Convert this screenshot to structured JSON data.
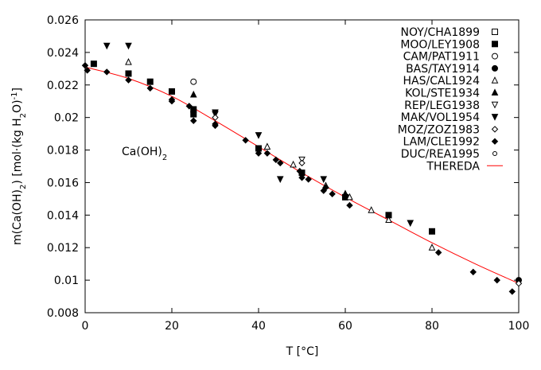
{
  "chart_data": {
    "type": "scatter",
    "xlabel": "T [°C]",
    "ylabel_parts": [
      "m(Ca(OH)",
      "2",
      ") [mol·(kg H",
      "2",
      "O)",
      "-1",
      "]"
    ],
    "annotation_parts": [
      "Ca(OH)",
      "2"
    ],
    "xlim": [
      0,
      100
    ],
    "ylim": [
      0.008,
      0.026
    ],
    "xticks": [
      0,
      20,
      40,
      60,
      80,
      100
    ],
    "yticks": [
      0.008,
      0.01,
      0.012,
      0.014,
      0.016,
      0.018,
      0.02,
      0.022,
      0.024,
      0.026
    ],
    "ytick_labels": [
      "0.008",
      "0.01",
      "0.012",
      "0.014",
      "0.016",
      "0.018",
      "0.02",
      "0.022",
      "0.024",
      "0.026"
    ],
    "grid": false,
    "legend_position": "top-right",
    "series": [
      {
        "name": "NOY/CHA1899",
        "marker": "square-open",
        "x": [],
        "y": []
      },
      {
        "name": "MOO/LEY1908",
        "marker": "square-filled",
        "x": [
          2,
          10,
          15,
          20,
          25,
          25,
          40,
          50,
          60,
          70,
          80
        ],
        "y": [
          0.0233,
          0.0227,
          0.0222,
          0.0216,
          0.0205,
          0.0202,
          0.0181,
          0.0166,
          0.0151,
          0.014,
          0.013
        ]
      },
      {
        "name": "CAM/PAT1911",
        "marker": "circle-open",
        "x": [
          25
        ],
        "y": [
          0.0222
        ]
      },
      {
        "name": "BAS/TAY1914",
        "marker": "circle-filled",
        "x": [
          100
        ],
        "y": [
          0.01
        ]
      },
      {
        "name": "HAS/CAL1924",
        "marker": "triangle-up-open",
        "x": [
          10,
          42,
          48,
          55.5,
          60,
          61,
          66,
          70,
          80
        ],
        "y": [
          0.0234,
          0.0182,
          0.0171,
          0.0158,
          0.0153,
          0.0151,
          0.0143,
          0.0137,
          0.012
        ]
      },
      {
        "name": "KOL/STE1934",
        "marker": "triangle-up-filled",
        "x": [
          25,
          60
        ],
        "y": [
          0.0214,
          0.0153
        ]
      },
      {
        "name": "REP/LEG1938",
        "marker": "triangle-down-open",
        "x": [
          30,
          50
        ],
        "y": [
          0.0202,
          0.0174
        ]
      },
      {
        "name": "MAK/VOL1954",
        "marker": "triangle-down-filled",
        "x": [
          5,
          10,
          30,
          40,
          45,
          55,
          75
        ],
        "y": [
          0.0244,
          0.0244,
          0.0203,
          0.0189,
          0.0162,
          0.0162,
          0.0135
        ]
      },
      {
        "name": "MOZ/ZOZ1983",
        "marker": "diamond-open",
        "x": [
          30,
          50,
          100
        ],
        "y": [
          0.02,
          0.0172,
          0.0098
        ]
      },
      {
        "name": "LAM/CLE1992",
        "marker": "diamond-filled",
        "x": [
          0,
          0.5,
          5,
          10,
          15,
          20,
          20,
          24,
          25,
          25,
          30,
          30,
          37,
          40,
          40,
          42,
          44,
          45,
          49.5,
          50,
          50,
          51.5,
          55,
          55.5,
          57,
          61,
          81.5,
          89.5,
          95,
          98.5
        ],
        "y": [
          0.0232,
          0.0229,
          0.0228,
          0.0223,
          0.0218,
          0.0211,
          0.021,
          0.0207,
          0.0205,
          0.0198,
          0.0196,
          0.0195,
          0.0186,
          0.018,
          0.0178,
          0.0178,
          0.0174,
          0.0172,
          0.0167,
          0.0165,
          0.0163,
          0.0162,
          0.0155,
          0.0157,
          0.0153,
          0.0146,
          0.0117,
          0.0105,
          0.01,
          0.0093
        ]
      },
      {
        "name": "DUC/REA1995",
        "marker": "circle-open-small",
        "x": [],
        "y": []
      },
      {
        "name": "THEREDA",
        "marker": "line",
        "color": "#ff0000",
        "x": [
          0,
          10,
          20,
          30,
          40,
          50,
          60,
          70,
          80,
          90,
          100
        ],
        "y": [
          0.0231,
          0.0224,
          0.0213,
          0.0198,
          0.0182,
          0.0166,
          0.0151,
          0.0137,
          0.0123,
          0.011,
          0.0098
        ]
      }
    ]
  }
}
